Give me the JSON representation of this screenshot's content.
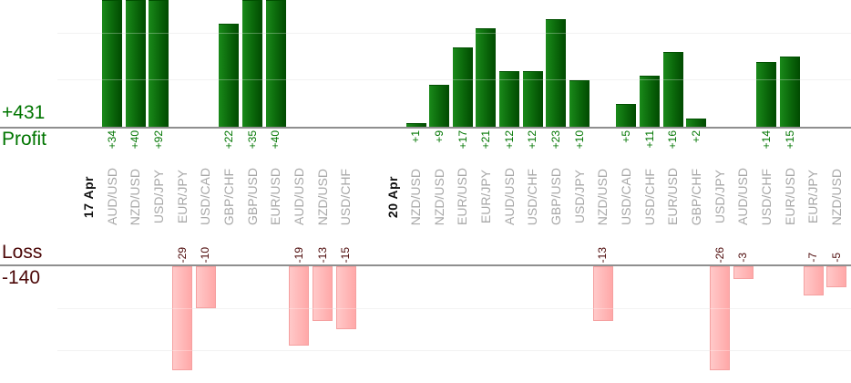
{
  "profit_panel": {
    "total": "+431",
    "label": "Profit"
  },
  "loss_panel": {
    "total": "-140",
    "label": "Loss"
  },
  "colors": {
    "profit_text": "#007500",
    "loss_text": "#4c0808",
    "pair_text": "#a8a8a8",
    "date_text": "#111111",
    "axis_line": "#8f8f8f",
    "gridline": "#ececec",
    "profit_bar_light": "#1a8a1a",
    "profit_bar_dark": "#014a01",
    "profit_bar_top": "#015001",
    "loss_bar_light": "#ffc9c9",
    "loss_bar_dark": "#ffa8a8",
    "loss_bar_border": "#f5a0a0"
  },
  "chart_data": {
    "type": "bar",
    "profit_axis": {
      "name": "Profit",
      "total": "+431",
      "gridline_units": [
        10,
        20
      ],
      "ylim_visible": [
        0,
        27
      ],
      "grid": true
    },
    "loss_axis": {
      "name": "Loss",
      "total": "-140",
      "gridline_units": [
        10,
        20
      ],
      "ylim_visible": [
        0,
        -25
      ],
      "grid": true
    },
    "columns": [
      {
        "kind": "date",
        "label": "17 Apr"
      },
      {
        "kind": "pair",
        "label": "AUD/USD",
        "value": 34,
        "value_label": "+34"
      },
      {
        "kind": "pair",
        "label": "NZD/USD",
        "value": 40,
        "value_label": "+40"
      },
      {
        "kind": "pair",
        "label": "USD/JPY",
        "value": 92,
        "value_label": "+92"
      },
      {
        "kind": "pair",
        "label": "EUR/JPY",
        "value": -29,
        "value_label": "-29"
      },
      {
        "kind": "pair",
        "label": "USD/CAD",
        "value": -10,
        "value_label": "-10"
      },
      {
        "kind": "pair",
        "label": "GBP/CHF",
        "value": 22,
        "value_label": "+22"
      },
      {
        "kind": "pair",
        "label": "GBP/USD",
        "value": 35,
        "value_label": "+35"
      },
      {
        "kind": "pair",
        "label": "EUR/USD",
        "value": 40,
        "value_label": "+40"
      },
      {
        "kind": "pair",
        "label": "AUD/USD",
        "value": -19,
        "value_label": "-19"
      },
      {
        "kind": "pair",
        "label": "NZD/USD",
        "value": -13,
        "value_label": "-13"
      },
      {
        "kind": "pair",
        "label": "USD/CHF",
        "value": -15,
        "value_label": "-15"
      },
      {
        "kind": "spacer",
        "label": ""
      },
      {
        "kind": "date",
        "label": "20 Apr"
      },
      {
        "kind": "pair",
        "label": "NZD/USD",
        "value": 1,
        "value_label": "+1"
      },
      {
        "kind": "pair",
        "label": "NZD/USD",
        "value": 9,
        "value_label": "+9"
      },
      {
        "kind": "pair",
        "label": "EUR/USD",
        "value": 17,
        "value_label": "+17"
      },
      {
        "kind": "pair",
        "label": "EUR/JPY",
        "value": 21,
        "value_label": "+21"
      },
      {
        "kind": "pair",
        "label": "AUD/USD",
        "value": 12,
        "value_label": "+12"
      },
      {
        "kind": "pair",
        "label": "USD/CHF",
        "value": 12,
        "value_label": "+12"
      },
      {
        "kind": "pair",
        "label": "GBP/USD",
        "value": 23,
        "value_label": "+23"
      },
      {
        "kind": "pair",
        "label": "USD/JPY",
        "value": 10,
        "value_label": "+10"
      },
      {
        "kind": "pair",
        "label": "NZD/USD",
        "value": -13,
        "value_label": "-13"
      },
      {
        "kind": "pair",
        "label": "USD/CAD",
        "value": 5,
        "value_label": "+5"
      },
      {
        "kind": "pair",
        "label": "USD/CHF",
        "value": 11,
        "value_label": "+11"
      },
      {
        "kind": "pair",
        "label": "EUR/USD",
        "value": 16,
        "value_label": "+16"
      },
      {
        "kind": "pair",
        "label": "GBP/CHF",
        "value": 2,
        "value_label": "+2"
      },
      {
        "kind": "pair",
        "label": "USD/JPY",
        "value": -26,
        "value_label": "-26"
      },
      {
        "kind": "pair",
        "label": "AUD/USD",
        "value": -3,
        "value_label": "-3"
      },
      {
        "kind": "pair",
        "label": "USD/CHF",
        "value": 14,
        "value_label": "+14"
      },
      {
        "kind": "pair",
        "label": "EUR/USD",
        "value": 15,
        "value_label": "+15"
      },
      {
        "kind": "pair",
        "label": "EUR/JPY",
        "value": -7,
        "value_label": "-7"
      },
      {
        "kind": "pair",
        "label": "NZD/USD",
        "value": -5,
        "value_label": "-5"
      }
    ]
  }
}
